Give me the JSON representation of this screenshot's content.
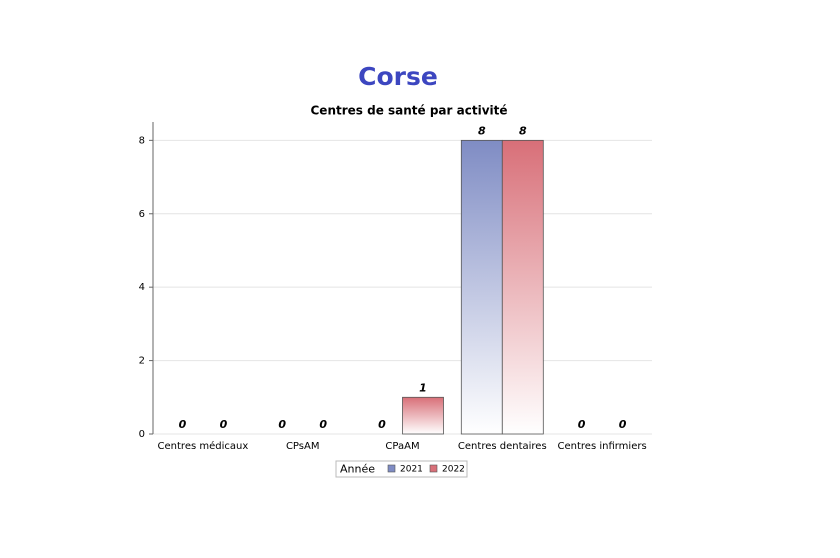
{
  "header": {
    "title": "Corse"
  },
  "chart_data": {
    "type": "bar",
    "title": "Centres de santé par activité",
    "categories": [
      "Centres médicaux",
      "CPsAM",
      "CPaAM",
      "Centres dentaires",
      "Centres infirmiers"
    ],
    "series": [
      {
        "name": "2021",
        "color": "#7f8cc4",
        "values": [
          0,
          0,
          0,
          8,
          0
        ]
      },
      {
        "name": "2022",
        "color": "#d86f78",
        "values": [
          0,
          0,
          1,
          8,
          0
        ]
      }
    ],
    "ylim": [
      0,
      8.5
    ],
    "yticks": [
      0,
      2,
      4,
      6,
      8
    ],
    "grid": true,
    "legend_title": "Année",
    "legend_position": "bottom"
  }
}
